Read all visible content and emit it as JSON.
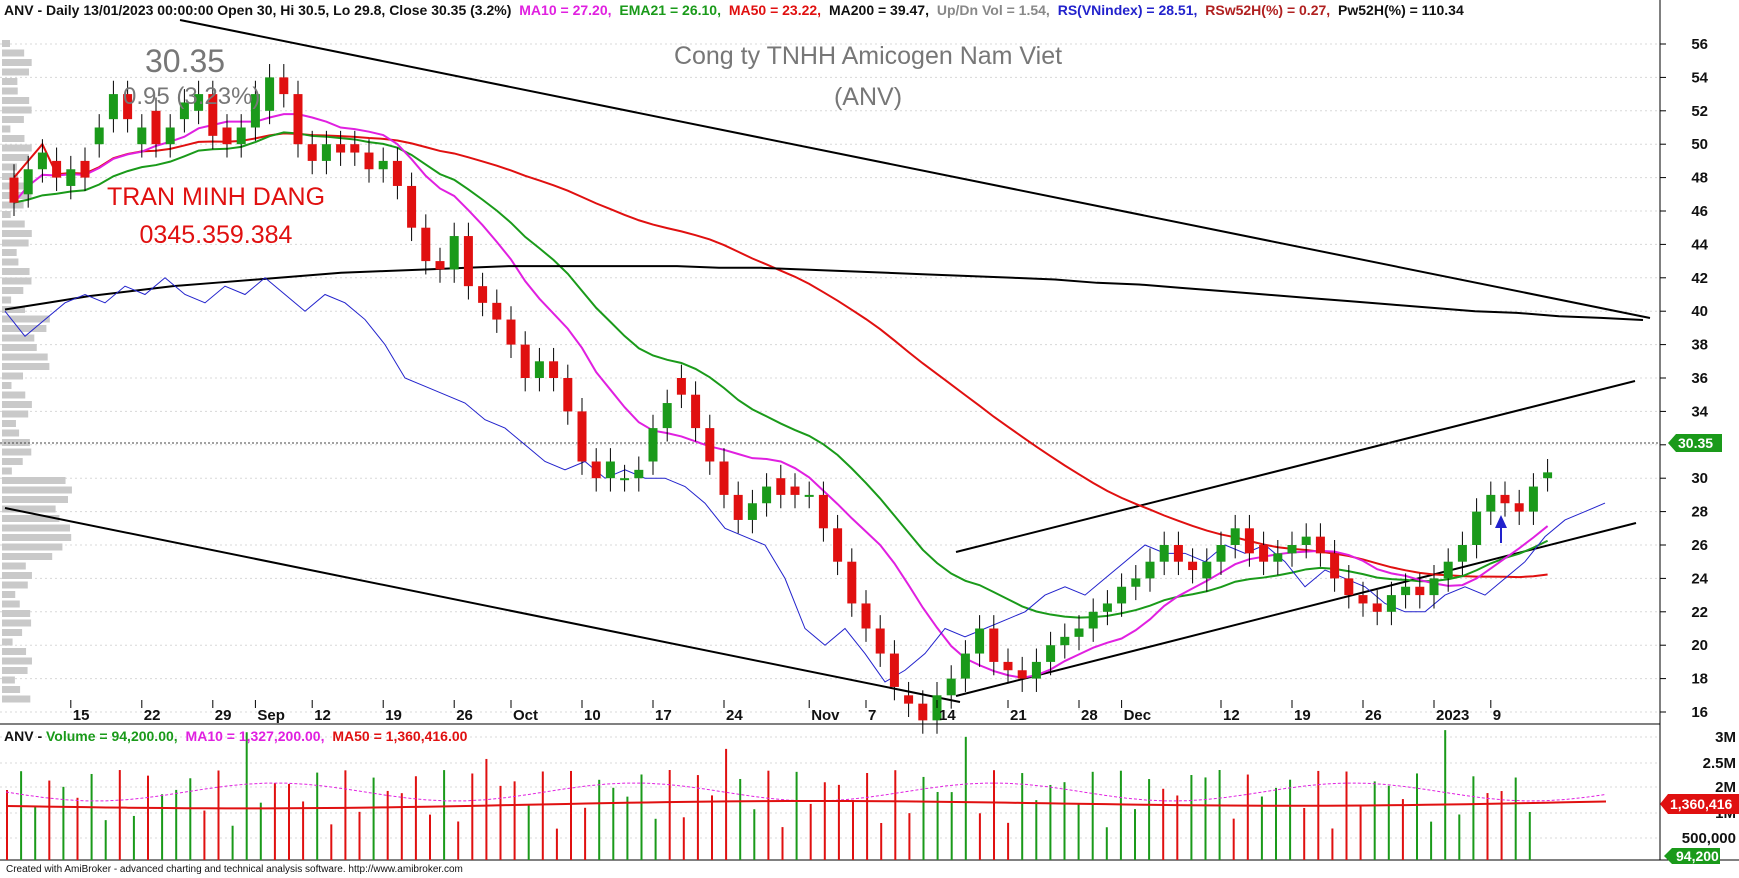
{
  "header": {
    "prefix": "ANV - Daily 13/01/2023 00:00:00 Open 30, Hi 30.5, Lo 29.8, Close 30.35 (3.2%)",
    "ma10": "MA10 = 27.20,",
    "ema21": "EMA21 = 26.10,",
    "ma50": "MA50 = 23.22,",
    "ma200": "MA200 = 39.47,",
    "updn": "Up/Dn Vol = 1.54,",
    "rs": "RS(VNindex) = 28.51,",
    "rsw": "RSw52H(%) = 0.27,",
    "pw": "Pw52H(%) = 110.34"
  },
  "watermark": {
    "price": "30.35",
    "change": "0.95 (3.23%)",
    "company": "Cong ty TNHH Amicogen Nam Viet",
    "ticker": "(ANV)",
    "author": "TRAN MINH DANG",
    "phone": "0345.359.384"
  },
  "price_badge": "30.35",
  "volume_header": {
    "prefix": "ANV - ",
    "volume": "Volume = 94,200.00,",
    "ma10": "MA10 = 1,327,200.00,",
    "ma50": "MA50 = 1,360,416.00"
  },
  "volume_badges": {
    "ma50": "1,360,416",
    "vol": "94,200"
  },
  "footer": "Created with AmiBroker - advanced charting and technical analysis software. http://www.amibroker.com",
  "colors": {
    "up": "#1a9a1a",
    "down": "#e01010",
    "ma10": "#e020e0",
    "ema21": "#1a9a1a",
    "ma50": "#e01010",
    "ma200": "#000000",
    "rs": "#2222cc"
  },
  "chart_data": {
    "type": "candlestick",
    "y_ticks": [
      16,
      18,
      20,
      22,
      24,
      26,
      28,
      30,
      32,
      34,
      36,
      38,
      40,
      42,
      44,
      46,
      48,
      50,
      52,
      54,
      56
    ],
    "x_labels": [
      {
        "i": 4,
        "text": "15"
      },
      {
        "i": 9,
        "text": "22"
      },
      {
        "i": 14,
        "text": "29"
      },
      {
        "i": 17,
        "text": "Sep"
      },
      {
        "i": 21,
        "text": "12"
      },
      {
        "i": 26,
        "text": "19"
      },
      {
        "i": 31,
        "text": "26"
      },
      {
        "i": 35,
        "text": "Oct"
      },
      {
        "i": 40,
        "text": "10"
      },
      {
        "i": 45,
        "text": "17"
      },
      {
        "i": 50,
        "text": "24"
      },
      {
        "i": 56,
        "text": "Nov"
      },
      {
        "i": 60,
        "text": "7"
      },
      {
        "i": 65,
        "text": "14"
      },
      {
        "i": 70,
        "text": "21"
      },
      {
        "i": 75,
        "text": "28"
      },
      {
        "i": 78,
        "text": "Dec"
      },
      {
        "i": 85,
        "text": "12"
      },
      {
        "i": 90,
        "text": "19"
      },
      {
        "i": 95,
        "text": "26"
      },
      {
        "i": 100,
        "text": "2023"
      },
      {
        "i": 104,
        "text": "9"
      }
    ],
    "closes": [
      46.5,
      48.5,
      49.5,
      48,
      48.5,
      48,
      51,
      53,
      51.5,
      51,
      50,
      51,
      52.5,
      53,
      50.5,
      50,
      51,
      53,
      54,
      53,
      50,
      49,
      50,
      49.5,
      49.5,
      48.5,
      49,
      47.5,
      45,
      43,
      42.5,
      44.5,
      41.5,
      40.5,
      39.5,
      38,
      36,
      37,
      36,
      34,
      31,
      30,
      31,
      30,
      30.5,
      33,
      34.5,
      35,
      33,
      31,
      29,
      27.5,
      28.5,
      29.5,
      29,
      29,
      29,
      27,
      25,
      22.5,
      21,
      19.5,
      17.5,
      16.5,
      15.5,
      17,
      18,
      19.5,
      21,
      19,
      18.5,
      18,
      19,
      20,
      20.5,
      21,
      22,
      22.5,
      23.5,
      24,
      25,
      26,
      25,
      24.5,
      25,
      26,
      27,
      25.5,
      25,
      25.5,
      26,
      26.5,
      25.5,
      24,
      23,
      22.5,
      22,
      23,
      23.5,
      23,
      24,
      25,
      26,
      28,
      29,
      28.5,
      28,
      29.5,
      30.35
    ],
    "opens": [
      48,
      47,
      48.5,
      49,
      47.5,
      49,
      50,
      51.5,
      53,
      50,
      52,
      50,
      51.5,
      52,
      53,
      51,
      50,
      51,
      52,
      54,
      53,
      50,
      49,
      50,
      50,
      49.5,
      48.5,
      49,
      47.5,
      45,
      43,
      42.5,
      44.5,
      41.5,
      40.5,
      39.5,
      38,
      36,
      37,
      36,
      34,
      31,
      30,
      30,
      30,
      31,
      33,
      36,
      35,
      33,
      31,
      29,
      27.5,
      28.5,
      30,
      29.5,
      29,
      29,
      27,
      25,
      22.5,
      21,
      19.5,
      17,
      16.5,
      15.5,
      17,
      18,
      19.5,
      21,
      19,
      18.5,
      18,
      19,
      20,
      20.5,
      21,
      22,
      22.5,
      23.5,
      24,
      25,
      26,
      25,
      24,
      25,
      26,
      27,
      26,
      25,
      25.5,
      26,
      26.5,
      25.5,
      24,
      23,
      22.5,
      22,
      23,
      23.5,
      23,
      24,
      25,
      26,
      28,
      29,
      28.5,
      28,
      30
    ],
    "ma200": [
      40.1,
      40.5,
      40.9,
      41.2,
      41.5,
      41.7,
      41.9,
      42.1,
      42.3,
      42.4,
      42.5,
      42.6,
      42.7,
      42.7,
      42.7,
      42.7,
      42.7,
      42.6,
      42.6,
      42.5,
      42.4,
      42.3,
      42.2,
      42.1,
      42.0,
      41.9,
      41.7,
      41.6,
      41.4,
      41.2,
      41.0,
      40.8,
      40.6,
      40.4,
      40.2,
      40.0,
      39.9,
      39.7,
      39.6,
      39.47
    ],
    "rs": [
      40,
      38.5,
      39.5,
      40.5,
      41,
      40.5,
      41.5,
      41,
      42,
      41,
      40.5,
      41.5,
      41,
      42,
      41,
      40,
      41,
      40.5,
      39.5,
      38,
      36,
      35.5,
      35,
      34.5,
      33.5,
      33,
      32,
      31,
      30.5,
      31,
      30,
      30.5,
      30,
      30,
      29.5,
      28.5,
      27,
      26.5,
      26,
      24,
      21,
      20,
      21,
      19.5,
      17.8,
      18.5,
      19.5,
      21,
      20.5,
      21,
      21.5,
      22,
      23,
      23.5,
      23,
      24,
      25,
      26,
      25.5,
      25.5,
      25,
      26,
      25.5,
      26,
      25,
      23.5,
      24.5,
      24,
      23.5,
      22.5,
      22,
      22,
      23,
      23.5,
      23,
      24,
      25,
      26.5,
      27.5,
      28,
      28.51
    ]
  }
}
